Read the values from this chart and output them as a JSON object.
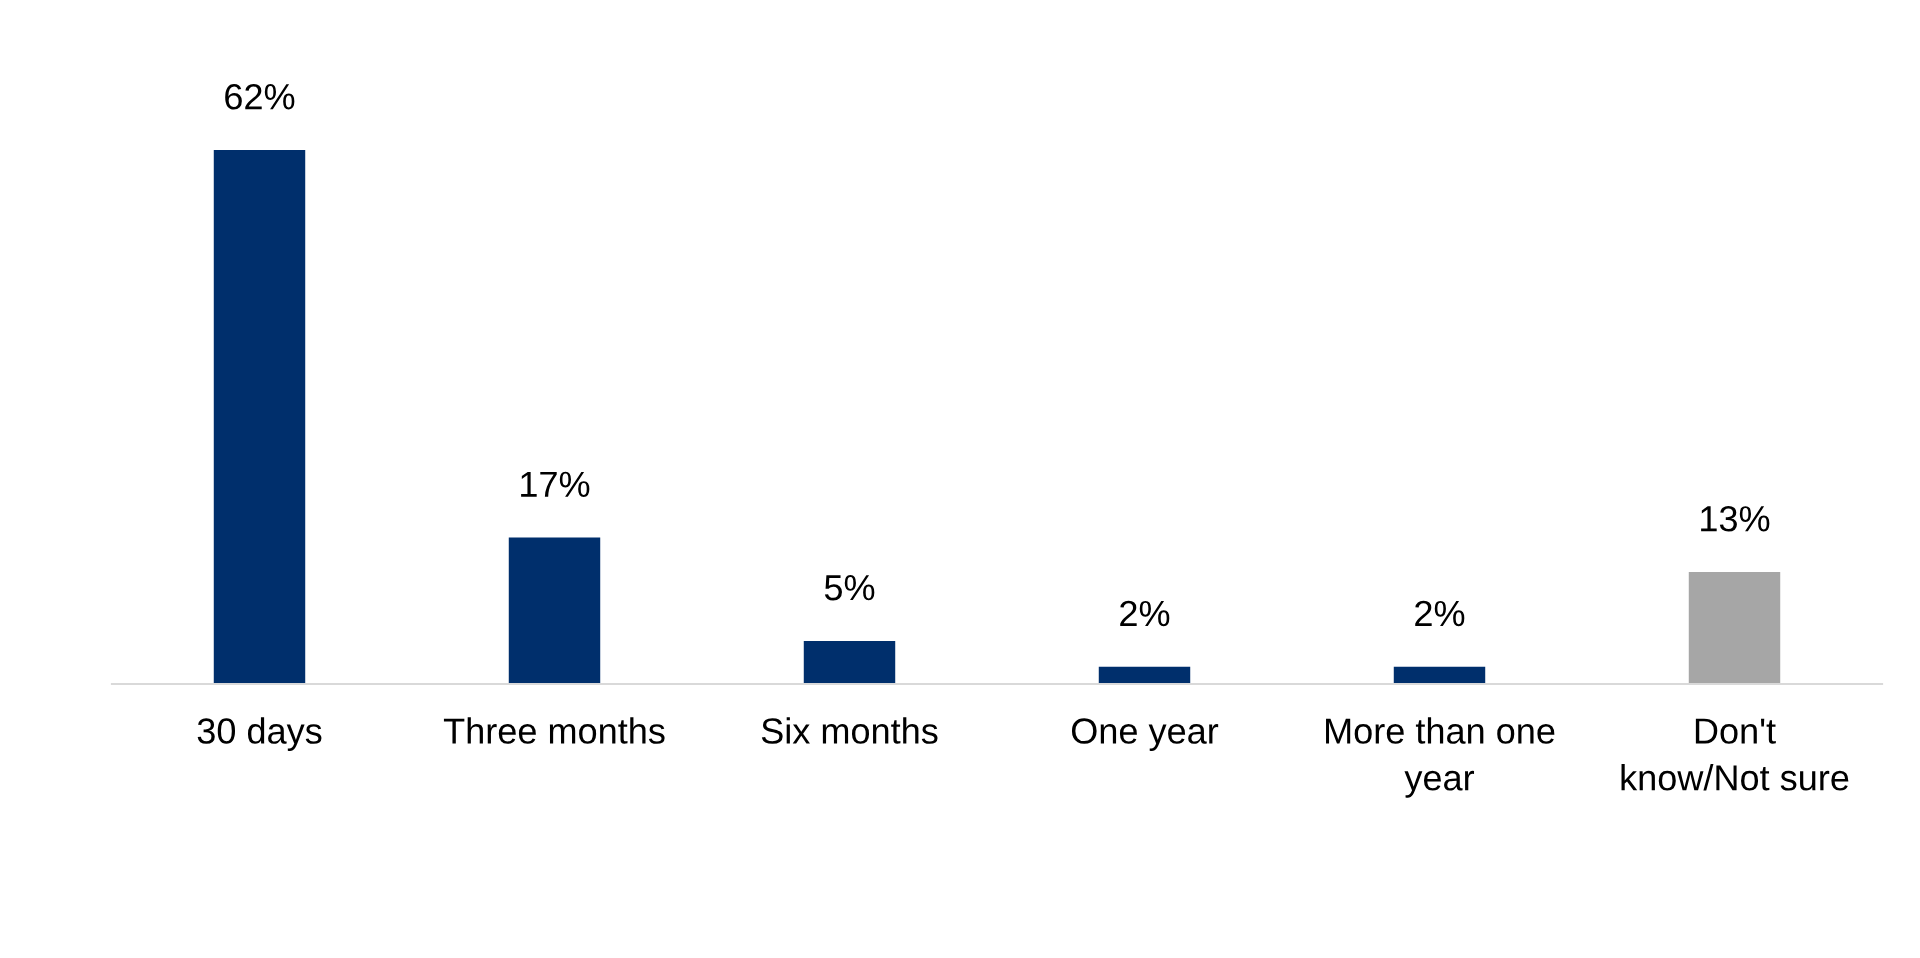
{
  "chart_data": {
    "type": "bar",
    "categories": [
      "30 days",
      "Three months",
      "Six months",
      "One year",
      "More than one\nyear",
      "Don't\nknow/Not sure"
    ],
    "values": [
      62,
      17,
      5,
      2,
      2,
      13
    ],
    "colors": [
      "#002f6c",
      "#002f6c",
      "#002f6c",
      "#002f6c",
      "#002f6c",
      "#a6a6a6"
    ],
    "value_labels": [
      "62%",
      "17%",
      "5%",
      "2%",
      "2%",
      "13%"
    ],
    "grid": false,
    "legend": false
  }
}
